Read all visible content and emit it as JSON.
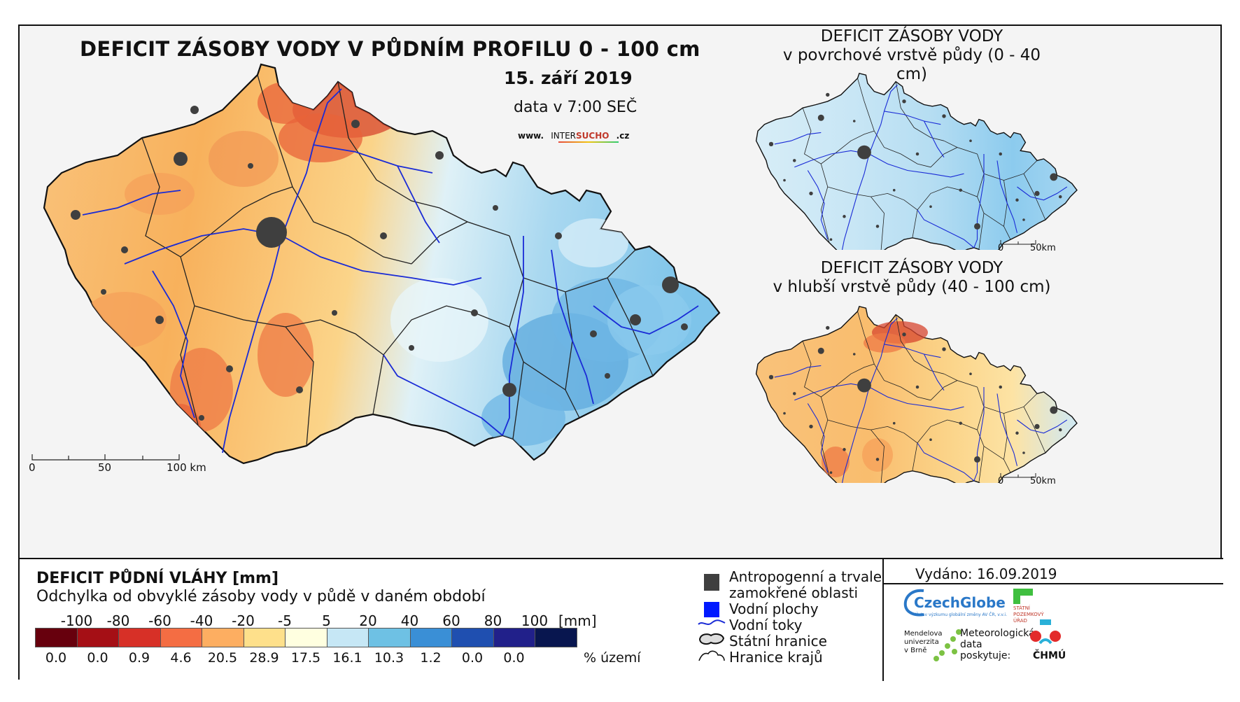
{
  "main_map": {
    "title": "DEFICIT ZÁSOBY VODY V PŮDNÍM PROFILU 0 - 100 cm",
    "date": "15. září 2019",
    "data_time": "data v 7:00 SEČ",
    "website_prefix": "www.",
    "website_name_a": "INTER",
    "website_name_b": "SUCHO",
    "website_suffix": ".cz",
    "scale_labels": [
      "0",
      "50",
      "100 km"
    ]
  },
  "inset_top": {
    "title_line1": "DEFICIT ZÁSOBY VODY",
    "title_line2": "v povrchové vrstvě půdy (0 - 40 cm)",
    "scale_labels": [
      "0",
      "50km"
    ]
  },
  "inset_bottom": {
    "title_line1": "DEFICIT ZÁSOBY VODY",
    "title_line2": "v hlubší vrstvě půdy (40 - 100 cm)",
    "scale_labels": [
      "0",
      "50km"
    ]
  },
  "legend": {
    "title": "DEFICIT PŮDNÍ VLÁHY [mm]",
    "subtitle": "Odchylka od obvyklé zásoby vody v půdě v daném období",
    "unit": "[mm]",
    "percent_label": "% území",
    "ticks": [
      "-100",
      "-80",
      "-60",
      "-40",
      "-20",
      "-5",
      "5",
      "20",
      "40",
      "60",
      "80",
      "100"
    ],
    "classes": [
      {
        "color": "#67000d",
        "percent": "0.0"
      },
      {
        "color": "#a50f15",
        "percent": "0.0"
      },
      {
        "color": "#d73027",
        "percent": "0.9"
      },
      {
        "color": "#f46d43",
        "percent": "4.6"
      },
      {
        "color": "#fdae61",
        "percent": "20.5"
      },
      {
        "color": "#fee08b",
        "percent": "28.9"
      },
      {
        "color": "#ffffe0",
        "percent": "17.5"
      },
      {
        "color": "#c6e7f5",
        "percent": "16.1"
      },
      {
        "color": "#6ec1e4",
        "percent": "10.3"
      },
      {
        "color": "#3a8fd6",
        "percent": "1.2"
      },
      {
        "color": "#1f4fb0",
        "percent": "0.0"
      },
      {
        "color": "#21208a",
        "percent": "0.0"
      },
      {
        "color": "#08164f",
        "percent": ""
      }
    ]
  },
  "symbols": {
    "urban": "Antropogenní a trvale zamokřené oblasti",
    "urban_line1": "Antropogenní a trvale",
    "urban_line2": "zamokřené oblasti",
    "water_bodies": "Vodní plochy",
    "rivers": "Vodní toky",
    "state_border": "Státní hranice",
    "region_border": "Hranice krajů"
  },
  "issued": "Vydáno: 16.09.2019",
  "logos": {
    "czechglobe": "CzechGlobe",
    "czechglobe_sub": "Ústav výzkumu globální změny AV ČR, v.v.i.",
    "spu_line1": "STÁTNÍ",
    "spu_line2": "POZEMKOVÝ",
    "spu_line3": "ÚŘAD",
    "mendel_line1": "Mendelova",
    "mendel_line2": "univerzita",
    "mendel_line3": "v Brně",
    "meteo_line1": "Meteorologická",
    "meteo_line2": "data",
    "meteo_line3": "poskytuje:",
    "chmu": "ČHMÚ"
  },
  "colors": {
    "river": "#1a2bd6",
    "urban": "#3f3f3f",
    "border": "#111111"
  }
}
